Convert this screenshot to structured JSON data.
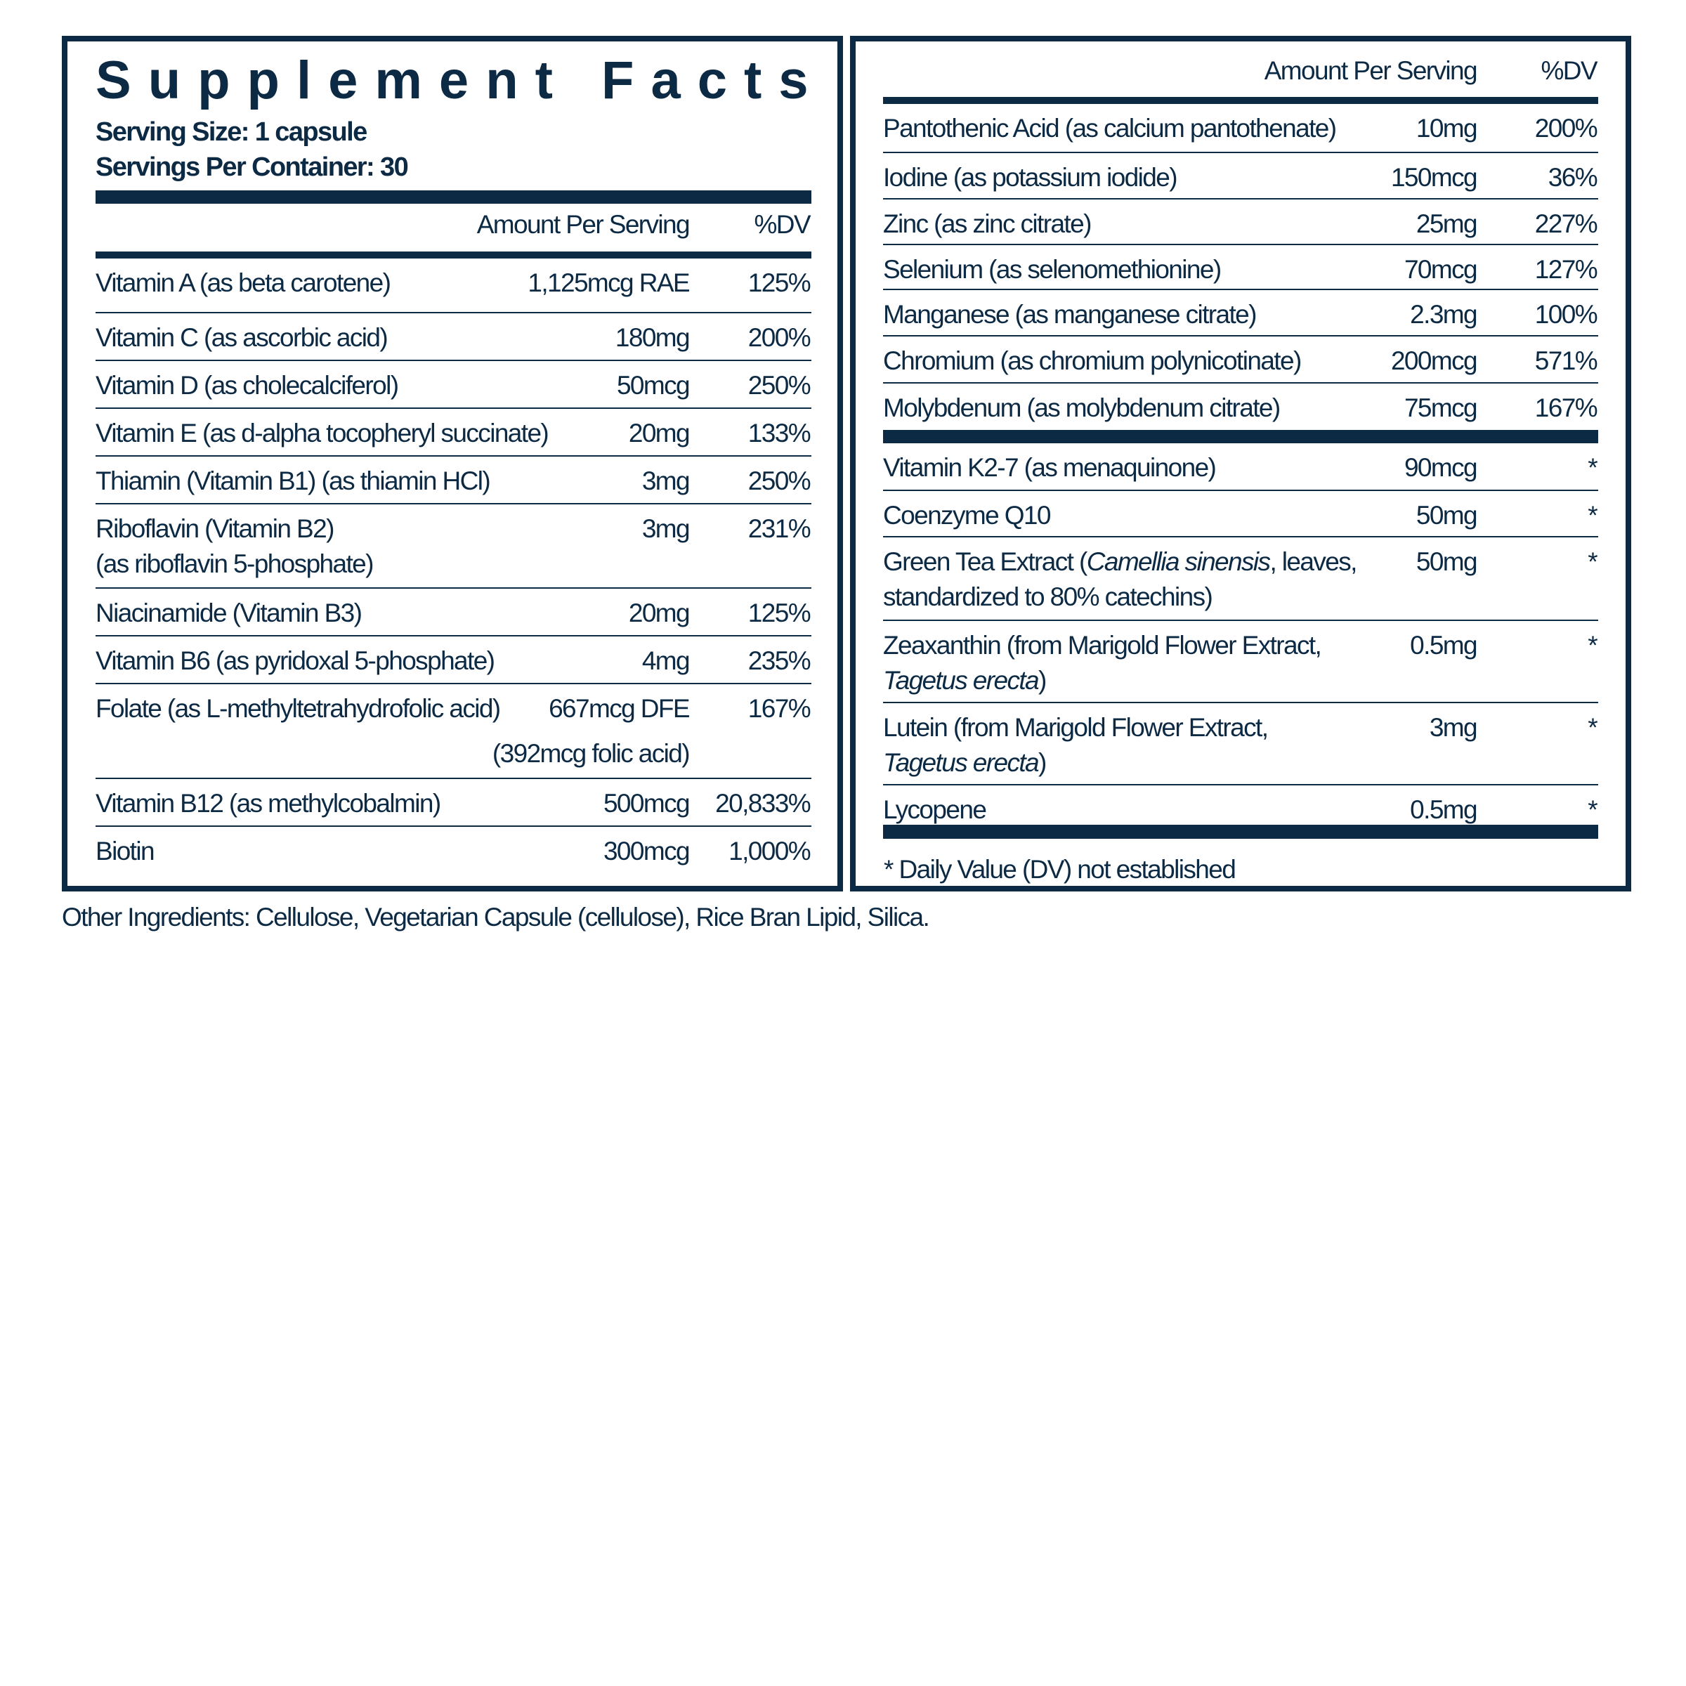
{
  "title": "Supplement Facts",
  "serving_size": "Serving Size: 1 capsule",
  "servings_per_container": "Servings Per Container: 30",
  "header": {
    "amount": "Amount Per Serving",
    "dv": "%DV"
  },
  "left_rows": [
    {
      "name": [
        [
          {
            "t": "Vitamin A (as beta carotene)"
          }
        ]
      ],
      "amount": [
        "1,125mcg RAE"
      ],
      "dv": "125%"
    },
    {
      "name": [
        [
          {
            "t": "Vitamin C (as ascorbic acid)"
          }
        ]
      ],
      "amount": [
        "180mg"
      ],
      "dv": "200%"
    },
    {
      "name": [
        [
          {
            "t": "Vitamin D (as cholecalciferol)"
          }
        ]
      ],
      "amount": [
        "50mcg"
      ],
      "dv": "250%"
    },
    {
      "name": [
        [
          {
            "t": "Vitamin E (as d-alpha tocopheryl succinate)"
          }
        ]
      ],
      "amount": [
        "20mg"
      ],
      "dv": "133%"
    },
    {
      "name": [
        [
          {
            "t": "Thiamin (Vitamin B1) (as thiamin HCl)"
          }
        ]
      ],
      "amount": [
        "3mg"
      ],
      "dv": "250%"
    },
    {
      "name": [
        [
          {
            "t": "Riboflavin (Vitamin B2)"
          }
        ],
        [
          {
            "t": "(as riboflavin 5-phosphate)"
          }
        ]
      ],
      "amount": [
        "3mg"
      ],
      "dv": "231%"
    },
    {
      "name": [
        [
          {
            "t": "Niacinamide (Vitamin B3)"
          }
        ]
      ],
      "amount": [
        "20mg"
      ],
      "dv": "125%"
    },
    {
      "name": [
        [
          {
            "t": "Vitamin B6 (as pyridoxal 5-phosphate)"
          }
        ]
      ],
      "amount": [
        "4mg"
      ],
      "dv": "235%"
    },
    {
      "name": [
        [
          {
            "t": "Folate (as L-methyltetrahydrofolic acid)"
          }
        ]
      ],
      "amount": [
        "667mcg DFE",
        "(392mcg folic acid)"
      ],
      "dv": "167%"
    },
    {
      "name": [
        [
          {
            "t": "Vitamin B12 (as methylcobalmin)"
          }
        ]
      ],
      "amount": [
        "500mcg"
      ],
      "dv": "20,833%"
    },
    {
      "name": [
        [
          {
            "t": "Biotin"
          }
        ]
      ],
      "amount": [
        "300mcg"
      ],
      "dv": "1,000%"
    }
  ],
  "right_rows_a": [
    {
      "name": [
        [
          {
            "t": "Pantothenic Acid (as calcium pantothenate)"
          }
        ]
      ],
      "amount": [
        "10mg"
      ],
      "dv": "200%"
    },
    {
      "name": [
        [
          {
            "t": "Iodine (as potassium iodide)"
          }
        ]
      ],
      "amount": [
        "150mcg"
      ],
      "dv": "36%"
    },
    {
      "name": [
        [
          {
            "t": "Zinc (as zinc citrate)"
          }
        ]
      ],
      "amount": [
        "25mg"
      ],
      "dv": "227%"
    },
    {
      "name": [
        [
          {
            "t": "Selenium (as selenomethionine)"
          }
        ]
      ],
      "amount": [
        "70mcg"
      ],
      "dv": "127%"
    },
    {
      "name": [
        [
          {
            "t": "Manganese (as manganese citrate)"
          }
        ]
      ],
      "amount": [
        "2.3mg"
      ],
      "dv": "100%"
    },
    {
      "name": [
        [
          {
            "t": "Chromium (as chromium polynicotinate)"
          }
        ]
      ],
      "amount": [
        "200mcg"
      ],
      "dv": "571%"
    },
    {
      "name": [
        [
          {
            "t": "Molybdenum (as molybdenum citrate)"
          }
        ]
      ],
      "amount": [
        "75mcg"
      ],
      "dv": "167%"
    }
  ],
  "right_rows_b": [
    {
      "name": [
        [
          {
            "t": "Vitamin K2-7 (as menaquinone)"
          }
        ]
      ],
      "amount": [
        "90mcg"
      ],
      "dv": "*"
    },
    {
      "name": [
        [
          {
            "t": "Coenzyme Q10"
          }
        ]
      ],
      "amount": [
        "50mg"
      ],
      "dv": "*"
    },
    {
      "name": [
        [
          {
            "t": "Green Tea Extract ("
          },
          {
            "t": "Camellia sinensis",
            "i": true
          },
          {
            "t": ", leaves,"
          }
        ],
        [
          {
            "t": "standardized to 80% catechins)"
          }
        ]
      ],
      "amount": [
        "50mg"
      ],
      "dv": "*"
    },
    {
      "name": [
        [
          {
            "t": "Zeaxanthin (from Marigold Flower Extract,"
          }
        ],
        [
          {
            "t": "Tagetus erecta",
            "i": true
          },
          {
            "t": ")"
          }
        ]
      ],
      "amount": [
        "0.5mg"
      ],
      "dv": "*"
    },
    {
      "name": [
        [
          {
            "t": "Lutein (from Marigold Flower Extract,"
          }
        ],
        [
          {
            "t": "Tagetus erecta",
            "i": true
          },
          {
            "t": ")"
          }
        ]
      ],
      "amount": [
        "3mg"
      ],
      "dv": "*"
    },
    {
      "name": [
        [
          {
            "t": "Lycopene"
          }
        ]
      ],
      "amount": [
        "0.5mg"
      ],
      "dv": "*"
    }
  ],
  "footnote": "* Daily Value (DV) not established",
  "other_ingredients": "Other Ingredients: Cellulose, Vegetarian Capsule (cellulose), Rice Bran Lipid, Silica.",
  "colors": {
    "ink": "#0d2a44",
    "background": "#ffffff"
  }
}
